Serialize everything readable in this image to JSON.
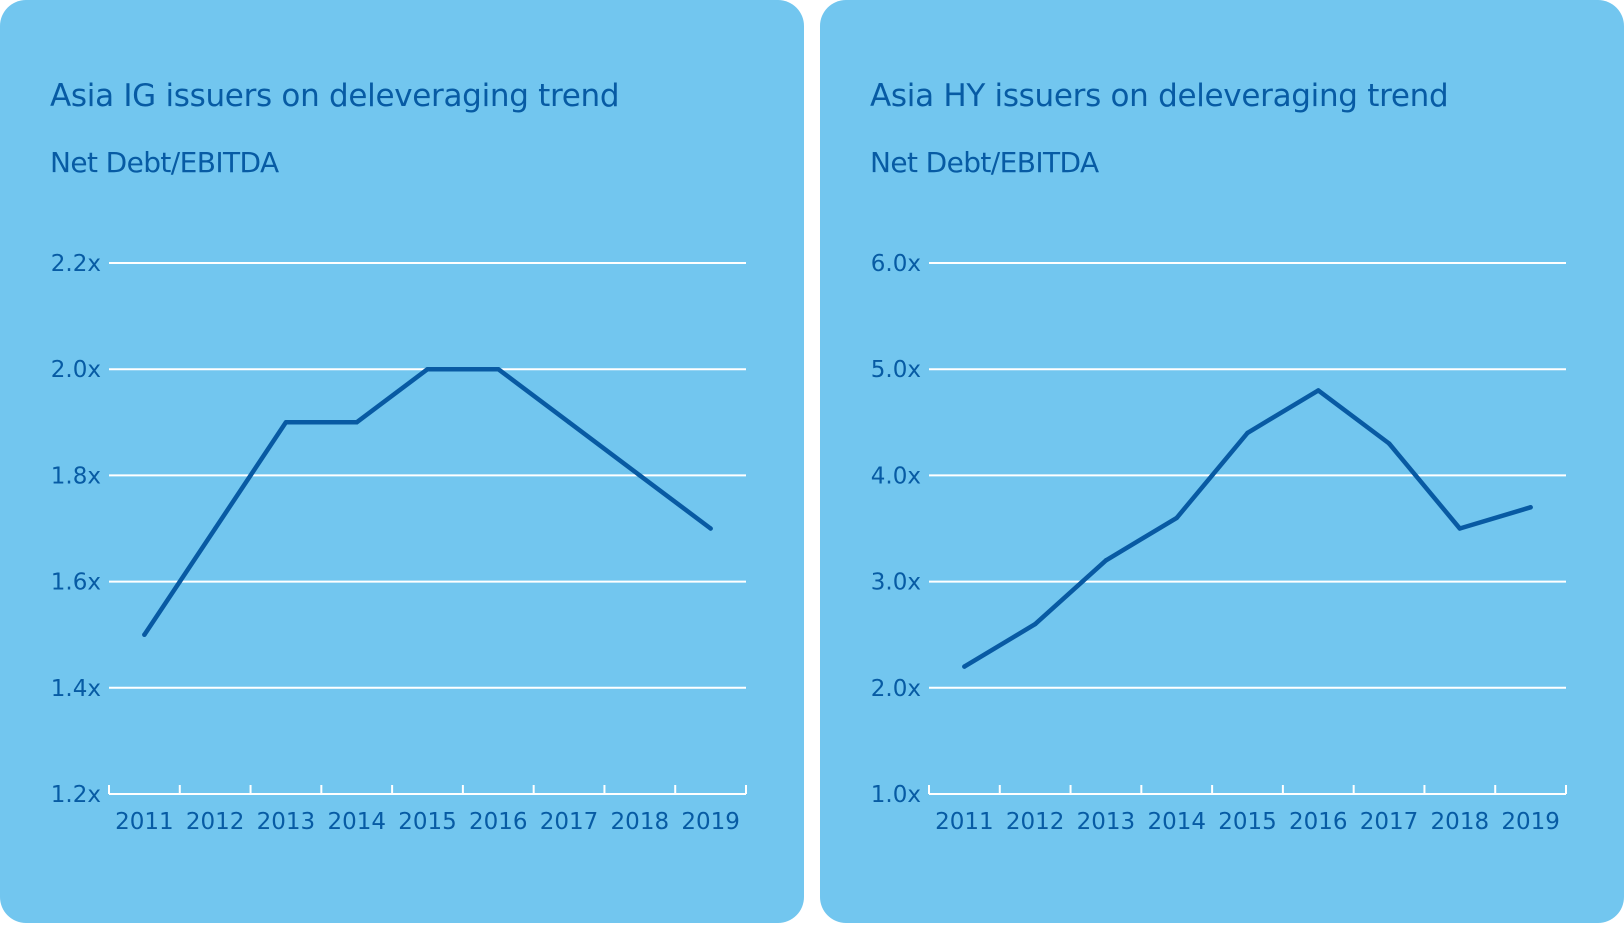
{
  "colors": {
    "panel_background": "#72c6ef",
    "line": "#085aa3",
    "text": "#075ba4",
    "gridline": "#ffffff"
  },
  "chart_data": [
    {
      "type": "line",
      "title": "Asia IG issuers on deleveraging trend",
      "subtitle": "Net Debt/EBITDA",
      "categories": [
        "2011",
        "2012",
        "2013",
        "2014",
        "2015",
        "2016",
        "2017",
        "2018",
        "2019"
      ],
      "series": [
        {
          "values": [
            1.5,
            1.7,
            1.9,
            1.9,
            2.0,
            2.0,
            1.9,
            1.8,
            1.7
          ]
        }
      ],
      "ylim": [
        1.2,
        2.2
      ],
      "yticks": [
        1.2,
        1.4,
        1.6,
        1.8,
        2.0,
        2.2
      ],
      "ytick_labels": [
        "1.2x",
        "1.4x",
        "1.6x",
        "1.8x",
        "2.0x",
        "2.2x"
      ],
      "grid": true,
      "legend": "none"
    },
    {
      "type": "line",
      "title": "Asia HY issuers on deleveraging trend",
      "subtitle": "Net Debt/EBITDA",
      "categories": [
        "2011",
        "2012",
        "2013",
        "2014",
        "2015",
        "2016",
        "2017",
        "2018",
        "2019"
      ],
      "series": [
        {
          "values": [
            2.2,
            2.6,
            3.2,
            3.6,
            4.4,
            4.8,
            4.3,
            3.5,
            3.7
          ]
        }
      ],
      "ylim": [
        1.0,
        6.0
      ],
      "yticks": [
        1.0,
        2.0,
        3.0,
        4.0,
        5.0,
        6.0
      ],
      "ytick_labels": [
        "1.0x",
        "2.0x",
        "3.0x",
        "4.0x",
        "5.0x",
        "6.0x"
      ],
      "grid": true,
      "legend": "none"
    }
  ]
}
